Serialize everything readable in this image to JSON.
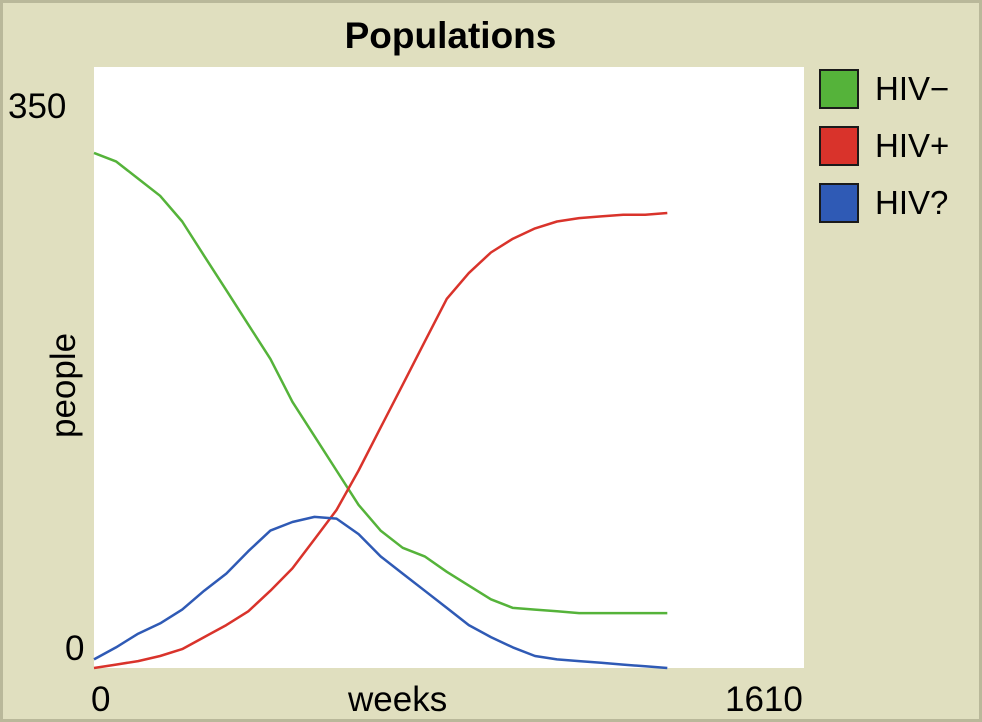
{
  "chart_data": {
    "type": "line",
    "title": "Populations",
    "xlabel": "weeks",
    "ylabel": "people",
    "xlim": [
      0,
      1610
    ],
    "ylim": [
      0,
      350
    ],
    "x_ticks": [
      "0",
      "1610"
    ],
    "y_ticks": [
      "350",
      "0"
    ],
    "legend_placement": "right",
    "series": [
      {
        "name": "HIV−",
        "color": "#55b33a",
        "x": [
          0,
          50,
          100,
          150,
          200,
          250,
          300,
          350,
          400,
          450,
          500,
          550,
          600,
          650,
          700,
          750,
          800,
          850,
          900,
          950,
          1000,
          1050,
          1100,
          1150,
          1200,
          1250,
          1300
        ],
        "y": [
          300,
          295,
          285,
          275,
          260,
          240,
          220,
          200,
          180,
          155,
          135,
          115,
          95,
          80,
          70,
          65,
          56,
          48,
          40,
          35,
          34,
          33,
          32,
          32,
          32,
          32,
          32
        ]
      },
      {
        "name": "HIV+",
        "color": "#d9332b",
        "x": [
          0,
          50,
          100,
          150,
          200,
          250,
          300,
          350,
          400,
          450,
          500,
          550,
          600,
          650,
          700,
          750,
          800,
          850,
          900,
          950,
          1000,
          1050,
          1100,
          1150,
          1200,
          1250,
          1300
        ],
        "y": [
          0,
          2,
          4,
          7,
          11,
          18,
          25,
          33,
          45,
          58,
          75,
          92,
          115,
          140,
          165,
          190,
          215,
          230,
          242,
          250,
          256,
          260,
          262,
          263,
          264,
          264,
          265
        ]
      },
      {
        "name": "HIV?",
        "color": "#2f5ab5",
        "x": [
          0,
          50,
          100,
          150,
          200,
          250,
          300,
          350,
          400,
          450,
          500,
          550,
          600,
          650,
          700,
          750,
          800,
          850,
          900,
          950,
          1000,
          1050,
          1100,
          1150,
          1200,
          1250,
          1300
        ],
        "y": [
          5,
          12,
          20,
          26,
          34,
          45,
          55,
          68,
          80,
          85,
          88,
          87,
          78,
          65,
          55,
          45,
          35,
          25,
          18,
          12,
          7,
          5,
          4,
          3,
          2,
          1,
          0
        ]
      }
    ]
  }
}
